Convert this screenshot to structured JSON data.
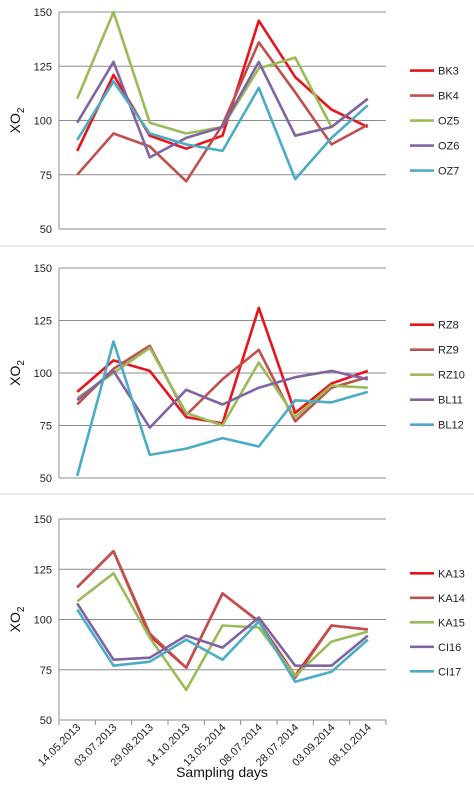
{
  "chart_data": [
    {
      "type": "line",
      "ylabel": "XO2",
      "ylim": [
        50,
        150
      ],
      "yticks": [
        "50",
        "75",
        "100",
        "125",
        "150"
      ],
      "grid": true,
      "legend": "right",
      "categories": [
        "14.05.2013",
        "03.07.2013",
        "29.08.2013",
        "14.10.2013",
        "13.05.2014",
        "08.07.2014",
        "28.07.2014",
        "03.09.2014",
        "08.10.2014"
      ],
      "series": [
        {
          "name": "BK3",
          "color": "#e8131b",
          "values": [
            86,
            121,
            93,
            87,
            93,
            146,
            120,
            105,
            97
          ]
        },
        {
          "name": "BK4",
          "color": "#c0504d",
          "values": [
            75,
            94,
            88,
            72,
            98,
            136,
            113,
            89,
            98
          ]
        },
        {
          "name": "OZ5",
          "color": "#9bbb59",
          "values": [
            110,
            150,
            99,
            94,
            97,
            124,
            129,
            97,
            110
          ]
        },
        {
          "name": "OZ6",
          "color": "#8064a2",
          "values": [
            99,
            127,
            83,
            92,
            97,
            127,
            93,
            97,
            110
          ]
        },
        {
          "name": "OZ7",
          "color": "#4bacc6",
          "values": [
            91,
            118,
            94,
            89,
            86,
            115,
            73,
            92,
            107
          ]
        }
      ]
    },
    {
      "type": "line",
      "ylabel": "XO2",
      "ylim": [
        50,
        150
      ],
      "yticks": [
        "50",
        "75",
        "100",
        "125",
        "150"
      ],
      "grid": true,
      "legend": "right",
      "categories": [
        "14.05.2013",
        "03.07.2013",
        "29.08.2013",
        "14.10.2013",
        "13.05.2014",
        "08.07.2014",
        "28.07.2014",
        "03.09.2014",
        "08.10.2014"
      ],
      "series": [
        {
          "name": "RZ8",
          "color": "#e8131b",
          "values": [
            91,
            106,
            101,
            79,
            76,
            131,
            81,
            95,
            101
          ]
        },
        {
          "name": "RZ9",
          "color": "#c0504d",
          "values": [
            85,
            102,
            113,
            80,
            97,
            111,
            77,
            93,
            98
          ]
        },
        {
          "name": "RZ10",
          "color": "#9bbb59",
          "values": [
            88,
            100,
            112,
            81,
            75,
            105,
            79,
            94,
            93
          ]
        },
        {
          "name": "BL11",
          "color": "#8064a2",
          "values": [
            87,
            101,
            74,
            92,
            85,
            93,
            98,
            101,
            97
          ]
        },
        {
          "name": "BL12",
          "color": "#4bacc6",
          "values": [
            51,
            115,
            61,
            64,
            69,
            65,
            87,
            86,
            91
          ]
        }
      ]
    },
    {
      "type": "line",
      "ylabel": "XO2",
      "xlabel": "Sampling days",
      "ylim": [
        50,
        150
      ],
      "yticks": [
        "50",
        "75",
        "100",
        "125",
        "150"
      ],
      "grid": true,
      "legend": "right",
      "categories": [
        "14.05.2013",
        "03.07.2013",
        "29.08.2013",
        "14.10.2013",
        "13.05.2014",
        "08.07.2014",
        "28.07.2014",
        "03.09.2014",
        "08.10.2014"
      ],
      "series": [
        {
          "name": "KA13",
          "color": "#e8131b",
          "values": [
            116,
            134,
            92,
            76,
            113,
            99,
            72,
            97,
            95
          ]
        },
        {
          "name": "KA14",
          "color": "#c0504d",
          "values": [
            116,
            134,
            93,
            76,
            113,
            99,
            71,
            97,
            95
          ]
        },
        {
          "name": "KA15",
          "color": "#9bbb59",
          "values": [
            109,
            123,
            91,
            65,
            97,
            96,
            72,
            89,
            94
          ]
        },
        {
          "name": "CI16",
          "color": "#8064a2",
          "values": [
            108,
            80,
            81,
            92,
            86,
            101,
            77,
            77,
            92
          ]
        },
        {
          "name": "CI17",
          "color": "#4bacc6",
          "values": [
            105,
            77,
            79,
            90,
            80,
            99,
            69,
            74,
            90
          ]
        }
      ]
    }
  ]
}
